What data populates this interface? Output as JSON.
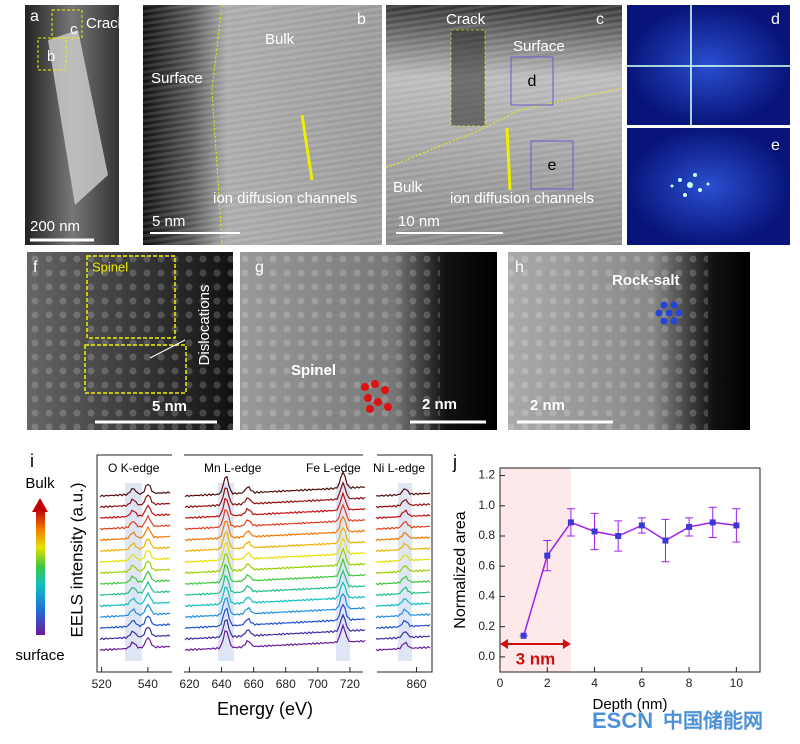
{
  "panels": {
    "a": {
      "letter": "a",
      "crack": "Crack",
      "box_c": "c",
      "box_b": "b",
      "scale": "200 nm"
    },
    "b": {
      "letter": "b",
      "bulk": "Bulk",
      "surface": "Surface",
      "channels": "ion diffusion channels",
      "scale": "5 nm"
    },
    "c": {
      "letter": "c",
      "crack": "Crack",
      "surface": "Surface",
      "box_d": "d",
      "box_e": "e",
      "bulk": "Bulk",
      "channels": "ion diffusion channels",
      "scale": "10 nm"
    },
    "d": {
      "letter": "d"
    },
    "e": {
      "letter": "e"
    },
    "f": {
      "letter": "f",
      "spinel": "Spinel",
      "dislocations": "Dislocations",
      "scale": "5 nm"
    },
    "g": {
      "letter": "g",
      "spinel": "Spinel",
      "scale": "2 nm"
    },
    "h": {
      "letter": "h",
      "rocksalt": "Rock-salt",
      "scale": "2 nm"
    }
  },
  "eels": {
    "letter": "i",
    "y_label": "EELS intensity (a.u.)",
    "x_label": "Energy (eV)",
    "top": "Bulk",
    "bottom": "surface",
    "edges": [
      "O K-edge",
      "Mn L-edge",
      "Fe L-edge",
      "Ni L-edge"
    ],
    "segments": [
      {
        "xlim": [
          518,
          550
        ],
        "xticks": [
          520,
          540
        ]
      },
      {
        "xlim": [
          616,
          730
        ],
        "xticks": [
          620,
          640,
          660,
          680,
          700,
          720
        ]
      },
      {
        "xlim": [
          838,
          868
        ],
        "xticks": [
          860
        ]
      }
    ]
  },
  "chart_data": {
    "type": "line",
    "letter": "j",
    "x_label": "Depth (nm)",
    "y_label": "Normalized area",
    "x": [
      1,
      2,
      3,
      4,
      5,
      6,
      7,
      8,
      9,
      10
    ],
    "values": [
      0.14,
      0.67,
      0.89,
      0.83,
      0.8,
      0.87,
      0.77,
      0.86,
      0.89,
      0.87
    ],
    "errors": [
      0.0,
      0.1,
      0.09,
      0.12,
      0.1,
      0.05,
      0.14,
      0.06,
      0.1,
      0.11
    ],
    "color": "#a020f0",
    "xlim": [
      0,
      11
    ],
    "xticks": [
      0,
      2,
      4,
      6,
      8,
      10
    ],
    "ylim": [
      -0.1,
      1.25
    ],
    "yticks": [
      {
        "value": 0,
        "label": "0.0"
      },
      0.2,
      0.4,
      0.6,
      0.8,
      {
        "value": 1,
        "label": "1.0"
      },
      1.2
    ],
    "highlight": {
      "xrange": [
        0,
        3
      ],
      "label": "3 nm"
    }
  },
  "watermark": {
    "brand": "ESCN",
    "site": "中国储能网"
  }
}
